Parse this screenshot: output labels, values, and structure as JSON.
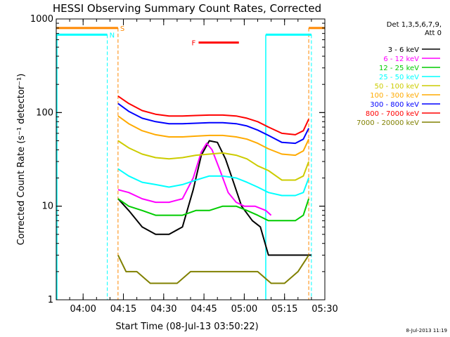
{
  "chart_data": {
    "type": "line",
    "title": "HESSI Observing Summary Count Rates, Corrected",
    "xlabel": "Start Time (08-Jul-13 03:50:22)",
    "ylabel": "Corrected Count Rate (s⁻¹ detector⁻¹)",
    "y_scale": "log",
    "ylim": [
      1,
      1000
    ],
    "xlim": [
      "03:50",
      "05:30"
    ],
    "x_ticks": [
      "04:00",
      "04:15",
      "04:30",
      "04:45",
      "05:00",
      "05:15",
      "05:30"
    ],
    "y_ticks": [
      "1",
      "10",
      "100",
      "1000"
    ],
    "legend": {
      "header": [
        "Det 1,3,5,6,7,9,",
        "Att 0"
      ],
      "placement": "right"
    },
    "series": [
      {
        "name": "3 - 6 keV",
        "color": "#000000",
        "x": [
          "04:13",
          "04:17",
          "04:22",
          "04:27",
          "04:32",
          "04:37",
          "04:41",
          "04:44",
          "04:47",
          "04:50",
          "04:53",
          "04:56",
          "04:59",
          "05:03",
          "05:06",
          "05:09",
          "05:13",
          "05:18",
          "05:22",
          "05:25"
        ],
        "values": [
          12,
          9,
          6,
          5,
          5,
          6,
          15,
          35,
          50,
          48,
          32,
          18,
          10,
          7,
          6,
          3,
          3,
          3,
          3,
          3
        ]
      },
      {
        "name": "6 - 12 keV",
        "color": "#ff00ff",
        "x": [
          "04:13",
          "04:17",
          "04:22",
          "04:27",
          "04:32",
          "04:37",
          "04:41",
          "04:44",
          "04:46",
          "04:48",
          "04:51",
          "04:54",
          "04:57",
          "05:00",
          "05:04",
          "05:08",
          "05:10"
        ],
        "values": [
          15,
          14,
          12,
          11,
          11,
          12,
          20,
          38,
          47,
          40,
          24,
          14,
          11,
          10,
          10,
          9,
          8
        ]
      },
      {
        "name": "12 - 25 keV",
        "color": "#00cc00",
        "x": [
          "04:13",
          "04:17",
          "04:22",
          "04:27",
          "04:32",
          "04:37",
          "04:42",
          "04:47",
          "04:52",
          "04:57",
          "05:01",
          "05:05",
          "05:09",
          "05:14",
          "05:19",
          "05:22",
          "05:24"
        ],
        "values": [
          12,
          10,
          9,
          8,
          8,
          8,
          9,
          9,
          10,
          10,
          9,
          8,
          7,
          7,
          7,
          8,
          12
        ]
      },
      {
        "name": "25 - 50 keV",
        "color": "#00ffff",
        "x": [
          "04:13",
          "04:17",
          "04:22",
          "04:27",
          "04:32",
          "04:37",
          "04:42",
          "04:47",
          "04:52",
          "04:57",
          "05:01",
          "05:05",
          "05:09",
          "05:14",
          "05:19",
          "05:22",
          "05:24"
        ],
        "values": [
          25,
          21,
          18,
          17,
          16,
          17,
          19,
          21,
          21,
          20,
          18,
          16,
          14,
          13,
          13,
          14,
          20
        ]
      },
      {
        "name": "50 - 100 keV",
        "color": "#cccc00",
        "x": [
          "04:13",
          "04:17",
          "04:22",
          "04:27",
          "04:32",
          "04:37",
          "04:42",
          "04:47",
          "04:52",
          "04:57",
          "05:01",
          "05:05",
          "05:09",
          "05:14",
          "05:19",
          "05:22",
          "05:24"
        ],
        "values": [
          50,
          42,
          36,
          33,
          32,
          33,
          35,
          36,
          37,
          35,
          32,
          27,
          24,
          19,
          19,
          21,
          30
        ]
      },
      {
        "name": "100 - 300 keV",
        "color": "#ffaa00",
        "x": [
          "04:13",
          "04:17",
          "04:22",
          "04:27",
          "04:32",
          "04:37",
          "04:42",
          "04:47",
          "04:52",
          "04:57",
          "05:01",
          "05:05",
          "05:09",
          "05:14",
          "05:19",
          "05:22",
          "05:24"
        ],
        "values": [
          92,
          76,
          64,
          58,
          55,
          55,
          56,
          57,
          57,
          55,
          52,
          47,
          41,
          36,
          35,
          39,
          52
        ]
      },
      {
        "name": "300 - 800 keV",
        "color": "#0000ff",
        "x": [
          "04:13",
          "04:17",
          "04:22",
          "04:27",
          "04:32",
          "04:37",
          "04:42",
          "04:47",
          "04:52",
          "04:57",
          "05:01",
          "05:05",
          "05:09",
          "05:14",
          "05:19",
          "05:22",
          "05:24"
        ],
        "values": [
          125,
          103,
          87,
          80,
          76,
          76,
          77,
          78,
          78,
          76,
          72,
          65,
          57,
          48,
          47,
          52,
          68
        ]
      },
      {
        "name": "800 - 7000 keV",
        "color": "#ff0000",
        "x": [
          "04:13",
          "04:17",
          "04:22",
          "04:27",
          "04:32",
          "04:37",
          "04:42",
          "04:47",
          "04:52",
          "04:57",
          "05:01",
          "05:05",
          "05:09",
          "05:14",
          "05:19",
          "05:22",
          "05:24"
        ],
        "values": [
          150,
          125,
          105,
          96,
          92,
          92,
          93,
          94,
          94,
          92,
          87,
          80,
          70,
          60,
          58,
          64,
          85
        ]
      },
      {
        "name": "7000 - 20000 keV",
        "color": "#808000",
        "x": [
          "04:13",
          "04:16",
          "04:20",
          "04:25",
          "04:30",
          "04:35",
          "04:40",
          "04:45",
          "04:50",
          "04:55",
          "05:00",
          "05:05",
          "05:10",
          "05:15",
          "05:20",
          "05:24"
        ],
        "values": [
          3,
          2,
          2,
          1.5,
          1.5,
          1.5,
          2,
          2,
          2,
          2,
          2,
          2,
          1.5,
          1.5,
          2,
          3
        ]
      }
    ],
    "indicators": [
      {
        "label": "S",
        "color": "#ff8800",
        "segments": [
          [
            "03:50",
            "04:13"
          ],
          [
            "05:24",
            "05:30"
          ]
        ],
        "y": 800,
        "edges": [
          "04:13",
          "05:24"
        ]
      },
      {
        "label": "N",
        "color": "#00ffff",
        "segments": [
          [
            "03:50",
            "04:09"
          ],
          [
            "05:08",
            "05:25"
          ]
        ],
        "y": 680,
        "edges": [
          "04:09",
          "05:25"
        ],
        "solid_edges": [
          "03:50",
          "05:08"
        ]
      },
      {
        "label": "F",
        "color": "#ff0000",
        "segments": [
          [
            "04:43",
            "04:58"
          ]
        ],
        "y": 560
      }
    ]
  },
  "footer": {
    "timestamp": "8-Jul-2013 11:19"
  }
}
